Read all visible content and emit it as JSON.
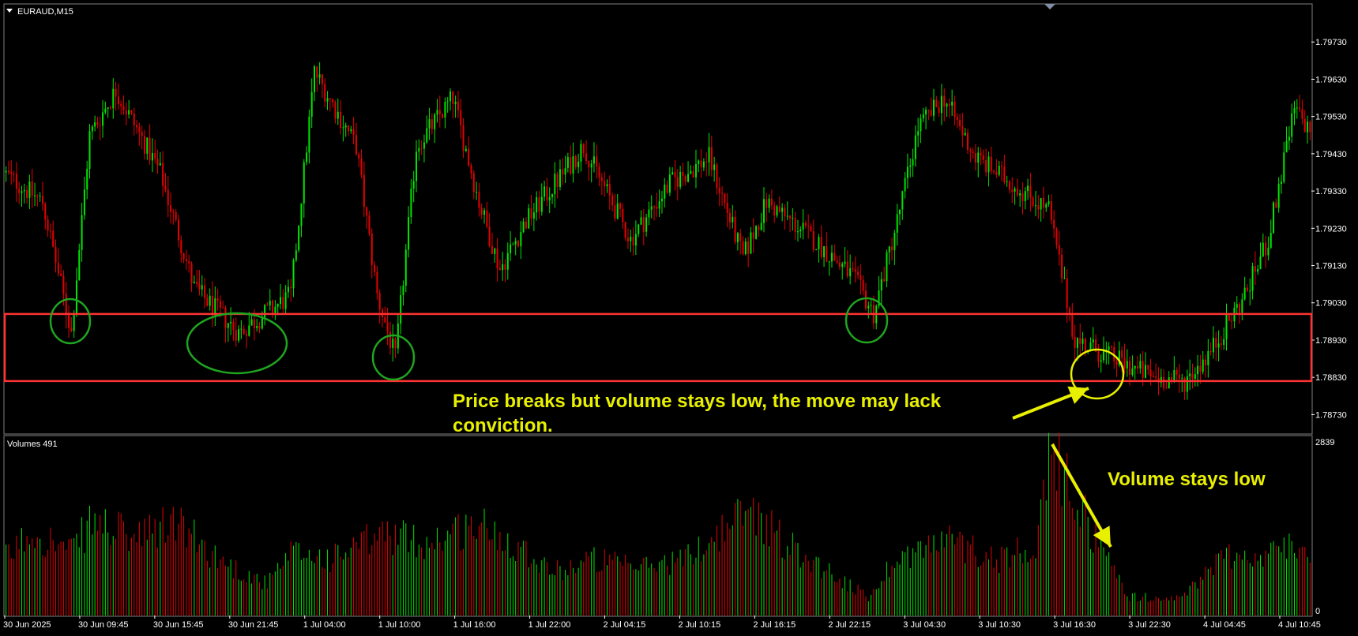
{
  "symbol_label": "EURAUD,M15",
  "volume_label": "Volumes 491",
  "colors": {
    "background": "#000000",
    "bull": "#00e600",
    "bear": "#e60000",
    "grid_line": "#7f7f7f",
    "axis_text": "#ffffff",
    "zone": "#ff3333",
    "circle_green": "#1fa51f",
    "annotation": "#e8f000"
  },
  "annotations": {
    "price_note_line1": "Price breaks but volume stays low, the move may lack",
    "price_note_line2": "conviction.",
    "volume_note": "Volume stays low"
  },
  "chart_data": [
    {
      "type": "candlestick",
      "title": "EURAUD,M15",
      "ylim": [
        1.7868,
        1.7983
      ],
      "y_ticks": [
        "1.79730",
        "1.79630",
        "1.79530",
        "1.79430",
        "1.79330",
        "1.79230",
        "1.79130",
        "1.79030",
        "1.78930",
        "1.78830",
        "1.78730"
      ],
      "x_ticks": [
        "30 Jun 2025",
        "30 Jun 09:45",
        "30 Jun 15:45",
        "30 Jun 21:45",
        "1 Jul 04:00",
        "1 Jul 10:00",
        "1 Jul 16:00",
        "1 Jul 22:00",
        "2 Jul 04:15",
        "2 Jul 10:15",
        "2 Jul 16:15",
        "2 Jul 22:15",
        "3 Jul 04:30",
        "3 Jul 10:30",
        "3 Jul 16:30",
        "3 Jul 22:30",
        "4 Jul 04:45",
        "4 Jul 10:45"
      ],
      "support_zone": [
        1.7882,
        1.79
      ],
      "price_path_keypoints": [
        [
          0,
          1.7938
        ],
        [
          15,
          1.793
        ],
        [
          26,
          1.7895
        ],
        [
          33,
          1.7948
        ],
        [
          43,
          1.796
        ],
        [
          60,
          1.7938
        ],
        [
          73,
          1.7907
        ],
        [
          90,
          1.7895
        ],
        [
          110,
          1.7905
        ],
        [
          119,
          1.7965
        ],
        [
          135,
          1.7945
        ],
        [
          143,
          1.7905
        ],
        [
          150,
          1.7888
        ],
        [
          158,
          1.7945
        ],
        [
          172,
          1.7958
        ],
        [
          182,
          1.793
        ],
        [
          190,
          1.7912
        ],
        [
          200,
          1.7925
        ],
        [
          222,
          1.7945
        ],
        [
          240,
          1.792
        ],
        [
          255,
          1.7935
        ],
        [
          270,
          1.7942
        ],
        [
          283,
          1.7915
        ],
        [
          292,
          1.793
        ],
        [
          310,
          1.792
        ],
        [
          325,
          1.791
        ],
        [
          333,
          1.79
        ],
        [
          342,
          1.7925
        ],
        [
          350,
          1.795
        ],
        [
          360,
          1.7958
        ],
        [
          372,
          1.7942
        ],
        [
          400,
          1.7928
        ],
        [
          410,
          1.7893
        ],
        [
          425,
          1.7888
        ],
        [
          440,
          1.7883
        ],
        [
          452,
          1.7882
        ],
        [
          462,
          1.789
        ],
        [
          475,
          1.7905
        ],
        [
          484,
          1.792
        ],
        [
          494,
          1.7955
        ],
        [
          499,
          1.795
        ]
      ],
      "volume_series": {
        "name": "Volumes 491",
        "y_ticks": [
          "2839",
          "0"
        ],
        "ylim": [
          0,
          2839
        ],
        "volume_keypoints": [
          [
            0,
            900
          ],
          [
            10,
            1350
          ],
          [
            25,
            1000
          ],
          [
            33,
            1500
          ],
          [
            50,
            1200
          ],
          [
            65,
            1500
          ],
          [
            75,
            1100
          ],
          [
            85,
            800
          ],
          [
            100,
            500
          ],
          [
            110,
            1000
          ],
          [
            125,
            900
          ],
          [
            145,
            1300
          ],
          [
            160,
            1150
          ],
          [
            180,
            1450
          ],
          [
            195,
            1150
          ],
          [
            210,
            700
          ],
          [
            225,
            900
          ],
          [
            240,
            750
          ],
          [
            260,
            900
          ],
          [
            285,
            1700
          ],
          [
            300,
            1100
          ],
          [
            315,
            700
          ],
          [
            330,
            280
          ],
          [
            340,
            900
          ],
          [
            360,
            1200
          ],
          [
            380,
            900
          ],
          [
            395,
            1200
          ],
          [
            400,
            2600
          ],
          [
            410,
            1800
          ],
          [
            420,
            1000
          ],
          [
            430,
            300
          ],
          [
            450,
            260
          ],
          [
            460,
            750
          ],
          [
            470,
            1000
          ],
          [
            480,
            900
          ],
          [
            490,
            1100
          ],
          [
            499,
            1000
          ]
        ]
      }
    }
  ]
}
